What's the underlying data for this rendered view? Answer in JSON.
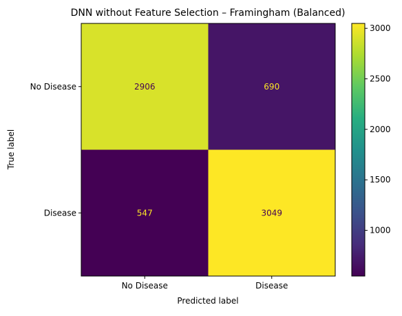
{
  "chart_data": {
    "type": "heatmap",
    "title": "DNN without Feature Selection – Framingham (Balanced)",
    "xlabel": "Predicted label",
    "ylabel": "True label",
    "x_categories": [
      "No Disease",
      "Disease"
    ],
    "y_categories": [
      "No Disease",
      "Disease"
    ],
    "values": [
      [
        2906,
        690
      ],
      [
        547,
        3049
      ]
    ],
    "colormap": "viridis",
    "colorbar": {
      "range": [
        547,
        3049
      ],
      "ticks": [
        1000,
        1500,
        2000,
        2500,
        3000
      ],
      "tick_labels": [
        "1000",
        "1500",
        "2000",
        "2500",
        "3000"
      ]
    },
    "grid": false,
    "cell_text_colors": {
      "on_light": "#440154",
      "on_dark": "#fde725"
    }
  }
}
